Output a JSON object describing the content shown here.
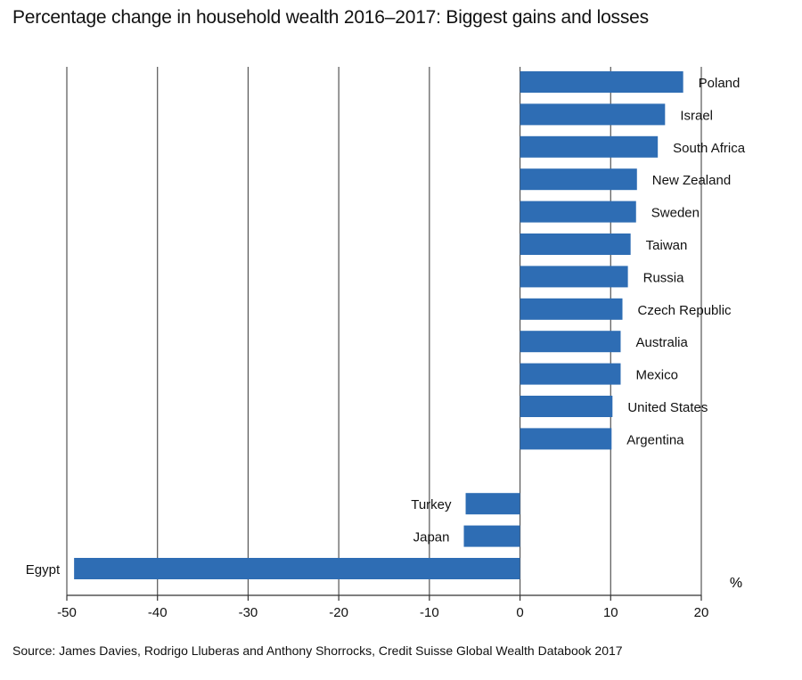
{
  "title": "Percentage change in household wealth 2016–2017: Biggest gains and losses",
  "source": "Source: James Davies, Rodrigo Lluberas and Anthony Shorrocks, Credit Suisse Global Wealth Databook 2017",
  "unit_label": "%",
  "colors": {
    "bar": "#2e6db4",
    "grid": "#555555",
    "axis": "#333333"
  },
  "chart_data": {
    "type": "bar",
    "orientation": "horizontal",
    "title": "Percentage change in household wealth 2016–2017: Biggest gains and losses",
    "xlabel": "%",
    "ylabel": "",
    "xlim": [
      -50,
      20
    ],
    "xticks": [
      -50,
      -40,
      -30,
      -20,
      -10,
      0,
      10,
      20
    ],
    "xtick_labels": [
      "-50",
      "-40",
      "-30",
      "-20",
      "-10",
      "0",
      "10",
      "20"
    ],
    "grid": "vertical",
    "categories": [
      "Poland",
      "Israel",
      "South Africa",
      "New Zealand",
      "Sweden",
      "Taiwan",
      "Russia",
      "Czech Republic",
      "Australia",
      "Mexico",
      "United States",
      "Argentina",
      "",
      "Turkey",
      "Japan",
      "Egypt"
    ],
    "values": [
      18,
      16,
      15.2,
      12.9,
      12.8,
      12.2,
      11.9,
      11.3,
      11.1,
      11.1,
      10.2,
      10.1,
      null,
      -6,
      -6.2,
      -49.2
    ]
  }
}
